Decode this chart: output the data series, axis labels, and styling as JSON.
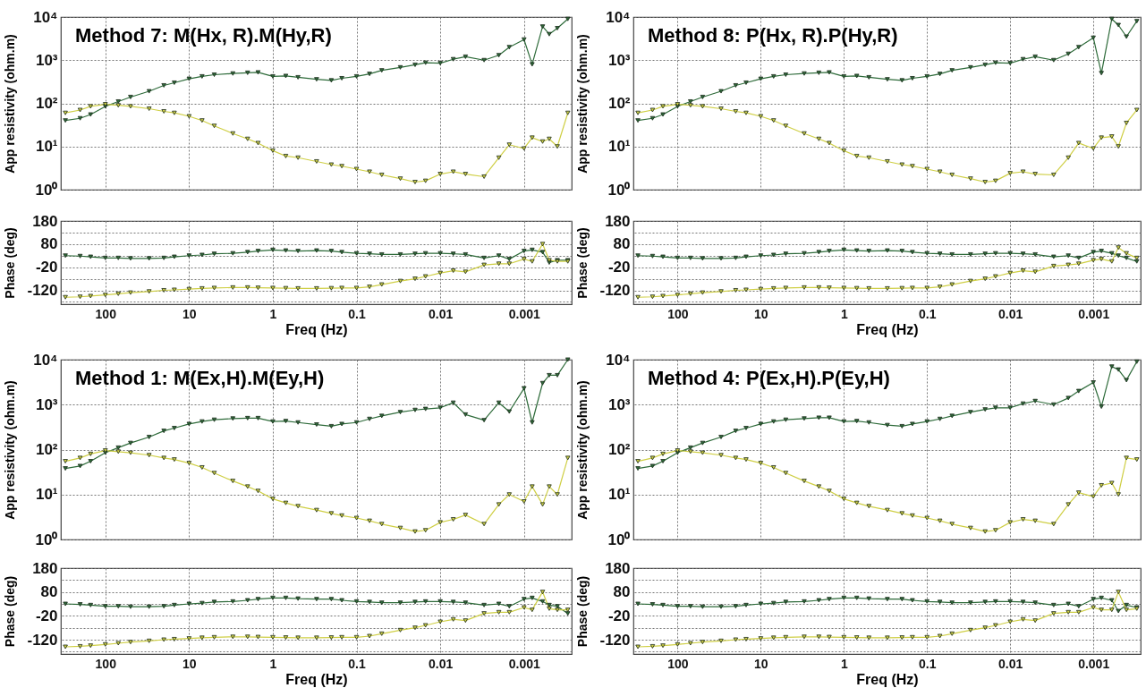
{
  "chart_data": [
    {
      "type": "line",
      "title": "Method 7: M(Hx, R).M(Hy,R)",
      "ylabel": "App resistivity (ohm.m)",
      "log": "xy",
      "grid": true,
      "marker": "triangle",
      "tick_labels": "y",
      "xlim": [
        340,
        0.00027
      ],
      "ylim": [
        1,
        10000
      ],
      "xticks": [
        100,
        10,
        1,
        0.1,
        0.01,
        0.001
      ],
      "yticks": [
        {
          "value": 1,
          "label": "10⁰"
        },
        {
          "value": 10,
          "label": "10¹"
        },
        {
          "value": 100,
          "label": "10²"
        },
        {
          "value": 1000,
          "label": "10³"
        },
        {
          "value": 10000,
          "label": "10⁴"
        }
      ],
      "x": [
        300,
        200,
        150,
        100,
        70,
        50,
        30,
        20,
        15,
        10,
        7,
        5,
        3,
        2,
        1.5,
        1,
        0.7,
        0.5,
        0.3,
        0.2,
        0.15,
        0.1,
        0.07,
        0.05,
        0.03,
        0.02,
        0.015,
        0.01,
        0.007,
        0.005,
        0.003,
        0.002,
        0.0015,
        0.001,
        0.0008,
        0.0006,
        0.0005,
        0.0004,
        0.0003
      ],
      "series": [
        {
          "color": "#2e6b3a",
          "values": [
            40,
            45,
            55,
            85,
            110,
            140,
            190,
            260,
            300,
            370,
            420,
            460,
            490,
            510,
            520,
            420,
            430,
            400,
            360,
            340,
            380,
            420,
            480,
            580,
            680,
            780,
            870,
            850,
            1050,
            1200,
            1000,
            1300,
            2000,
            3000,
            800,
            6000,
            4000,
            5500,
            9000
          ]
        },
        {
          "color": "#cfcf45",
          "values": [
            60,
            70,
            85,
            95,
            90,
            85,
            75,
            65,
            60,
            50,
            40,
            30,
            20,
            15,
            12,
            8,
            6,
            5.5,
            4.5,
            3.8,
            3.5,
            3,
            2.6,
            2.2,
            1.8,
            1.5,
            1.6,
            2.3,
            2.6,
            2.3,
            2,
            5.5,
            11,
            9,
            16,
            13,
            15,
            10,
            60
          ]
        }
      ]
    },
    {
      "type": "line",
      "title": "Method 8: P(Hx, R).P(Hy,R)",
      "ylabel": "App resistivity (ohm.m)",
      "log": "xy",
      "grid": true,
      "marker": "triangle",
      "tick_labels": "y",
      "xlim": [
        340,
        0.00027
      ],
      "ylim": [
        1,
        10000
      ],
      "xticks": [
        100,
        10,
        1,
        0.1,
        0.01,
        0.001
      ],
      "yticks": [
        {
          "value": 1,
          "label": "10⁰"
        },
        {
          "value": 10,
          "label": "10¹"
        },
        {
          "value": 100,
          "label": "10²"
        },
        {
          "value": 1000,
          "label": "10³"
        },
        {
          "value": 10000,
          "label": "10⁴"
        }
      ],
      "x": [
        300,
        200,
        150,
        100,
        70,
        50,
        30,
        20,
        15,
        10,
        7,
        5,
        3,
        2,
        1.5,
        1,
        0.7,
        0.5,
        0.3,
        0.2,
        0.15,
        0.1,
        0.07,
        0.05,
        0.03,
        0.02,
        0.015,
        0.01,
        0.007,
        0.005,
        0.003,
        0.002,
        0.0015,
        0.001,
        0.0008,
        0.0006,
        0.0005,
        0.0004,
        0.0003
      ],
      "series": [
        {
          "color": "#2e6b3a",
          "values": [
            40,
            45,
            55,
            85,
            110,
            140,
            190,
            260,
            300,
            370,
            420,
            460,
            490,
            510,
            520,
            420,
            430,
            400,
            360,
            340,
            380,
            420,
            480,
            580,
            680,
            780,
            870,
            850,
            1050,
            1200,
            1000,
            1400,
            2000,
            3300,
            500,
            9000,
            6500,
            3500,
            8000
          ]
        },
        {
          "color": "#cfcf45",
          "values": [
            60,
            70,
            85,
            95,
            90,
            85,
            75,
            65,
            60,
            50,
            40,
            30,
            20,
            15,
            12,
            8,
            6,
            5.5,
            4.5,
            3.8,
            3.5,
            3,
            2.6,
            2.2,
            1.8,
            1.5,
            1.6,
            2.4,
            2.6,
            2.3,
            2.2,
            5.5,
            12,
            9,
            16,
            17,
            10,
            35,
            70
          ]
        }
      ]
    },
    {
      "type": "line",
      "ylabel": "Phase (deg)",
      "xlabel": "Freq (Hz)",
      "log": "x",
      "grid": true,
      "marker": "triangle",
      "xlim": [
        340,
        0.00027
      ],
      "ylim": [
        -180,
        180
      ],
      "xticks": [
        100,
        10,
        1,
        0.1,
        0.01,
        0.001
      ],
      "yticks": [
        180,
        {
          "value": 130,
          "label": null
        },
        80,
        {
          "value": 30,
          "label": null
        },
        -20,
        {
          "value": -70,
          "label": null
        },
        -120,
        {
          "value": -170,
          "label": null
        }
      ],
      "x": [
        300,
        200,
        150,
        100,
        70,
        50,
        30,
        20,
        15,
        10,
        7,
        5,
        3,
        2,
        1.5,
        1,
        0.7,
        0.5,
        0.3,
        0.2,
        0.15,
        0.1,
        0.07,
        0.05,
        0.03,
        0.02,
        0.015,
        0.01,
        0.007,
        0.005,
        0.003,
        0.002,
        0.0015,
        0.001,
        0.0008,
        0.0006,
        0.0005,
        0.0004,
        0.0003
      ],
      "series": [
        {
          "color": "#2e6b3a",
          "values": [
            30,
            28,
            25,
            20,
            20,
            18,
            18,
            20,
            25,
            30,
            33,
            38,
            40,
            45,
            50,
            55,
            52,
            50,
            52,
            50,
            45,
            40,
            38,
            35,
            35,
            38,
            40,
            40,
            38,
            35,
            20,
            30,
            15,
            50,
            55,
            45,
            0,
            10,
            10
          ]
        },
        {
          "color": "#cfcf45",
          "values": [
            -150,
            -148,
            -145,
            -140,
            -135,
            -130,
            -125,
            -120,
            -118,
            -115,
            -112,
            -110,
            -108,
            -108,
            -109,
            -110,
            -111,
            -112,
            -112,
            -111,
            -110,
            -110,
            -105,
            -95,
            -80,
            -70,
            -60,
            -45,
            -35,
            -40,
            -10,
            -5,
            -5,
            15,
            5,
            80,
            10,
            5,
            5
          ]
        }
      ]
    },
    {
      "type": "line",
      "ylabel": "Phase (deg)",
      "xlabel": "Freq (Hz)",
      "log": "x",
      "grid": true,
      "marker": "triangle",
      "xlim": [
        340,
        0.00027
      ],
      "ylim": [
        -180,
        180
      ],
      "xticks": [
        100,
        10,
        1,
        0.1,
        0.01,
        0.001
      ],
      "yticks": [
        180,
        {
          "value": 130,
          "label": null
        },
        80,
        {
          "value": 30,
          "label": null
        },
        -20,
        {
          "value": -70,
          "label": null
        },
        -120,
        {
          "value": -170,
          "label": null
        }
      ],
      "x": [
        300,
        200,
        150,
        100,
        70,
        50,
        30,
        20,
        15,
        10,
        7,
        5,
        3,
        2,
        1.5,
        1,
        0.7,
        0.5,
        0.3,
        0.2,
        0.15,
        0.1,
        0.07,
        0.05,
        0.03,
        0.02,
        0.015,
        0.01,
        0.007,
        0.005,
        0.003,
        0.002,
        0.0015,
        0.001,
        0.0008,
        0.0006,
        0.0005,
        0.0004,
        0.0003
      ],
      "series": [
        {
          "color": "#2e6b3a",
          "values": [
            30,
            28,
            25,
            20,
            20,
            18,
            18,
            20,
            25,
            30,
            33,
            38,
            40,
            45,
            50,
            55,
            52,
            50,
            52,
            50,
            45,
            40,
            38,
            35,
            35,
            38,
            40,
            40,
            38,
            35,
            25,
            30,
            20,
            45,
            50,
            40,
            30,
            20,
            5
          ]
        },
        {
          "color": "#cfcf45",
          "values": [
            -150,
            -148,
            -145,
            -140,
            -135,
            -130,
            -125,
            -120,
            -118,
            -115,
            -112,
            -110,
            -108,
            -108,
            -109,
            -110,
            -111,
            -112,
            -112,
            -111,
            -110,
            -110,
            -105,
            -95,
            -80,
            -70,
            -60,
            -45,
            -35,
            -40,
            -15,
            -10,
            -5,
            10,
            15,
            5,
            65,
            40,
            20
          ]
        }
      ]
    },
    {
      "type": "line",
      "title": "Method 1: M(Ex,H).M(Ey,H)",
      "ylabel": "App resistivity (ohm.m)",
      "log": "xy",
      "grid": true,
      "marker": "triangle",
      "tick_labels": "y",
      "xlim": [
        340,
        0.00027
      ],
      "ylim": [
        1,
        10000
      ],
      "xticks": [
        100,
        10,
        1,
        0.1,
        0.01,
        0.001
      ],
      "yticks": [
        {
          "value": 1,
          "label": "10⁰"
        },
        {
          "value": 10,
          "label": "10¹"
        },
        {
          "value": 100,
          "label": "10²"
        },
        {
          "value": 1000,
          "label": "10³"
        },
        {
          "value": 10000,
          "label": "10⁴"
        }
      ],
      "x": [
        300,
        200,
        150,
        100,
        70,
        50,
        30,
        20,
        15,
        10,
        7,
        5,
        3,
        2,
        1.5,
        1,
        0.7,
        0.5,
        0.3,
        0.2,
        0.15,
        0.1,
        0.07,
        0.05,
        0.03,
        0.02,
        0.015,
        0.01,
        0.007,
        0.005,
        0.003,
        0.002,
        0.0015,
        0.001,
        0.0008,
        0.0006,
        0.0005,
        0.0004,
        0.0003
      ],
      "series": [
        {
          "color": "#2e6b3a",
          "values": [
            38,
            43,
            55,
            85,
            110,
            140,
            190,
            260,
            300,
            370,
            420,
            460,
            490,
            500,
            500,
            420,
            430,
            400,
            360,
            330,
            370,
            400,
            480,
            560,
            680,
            760,
            800,
            850,
            1100,
            600,
            450,
            1100,
            700,
            2300,
            400,
            3000,
            4500,
            4500,
            10000
          ]
        },
        {
          "color": "#cfcf45",
          "values": [
            55,
            65,
            80,
            95,
            90,
            85,
            75,
            65,
            60,
            50,
            40,
            30,
            20,
            15,
            12,
            8,
            6.5,
            5.5,
            4.5,
            3.8,
            3.4,
            3,
            2.6,
            2.2,
            1.8,
            1.5,
            1.6,
            2.4,
            2.8,
            3.5,
            2.2,
            6,
            10,
            7,
            15,
            6,
            15,
            10,
            65
          ]
        }
      ]
    },
    {
      "type": "line",
      "title": "Method 4: P(Ex,H).P(Ey,H)",
      "ylabel": "App resistivity (ohm.m)",
      "log": "xy",
      "grid": true,
      "marker": "triangle",
      "tick_labels": "y",
      "xlim": [
        340,
        0.00027
      ],
      "ylim": [
        1,
        10000
      ],
      "xticks": [
        100,
        10,
        1,
        0.1,
        0.01,
        0.001
      ],
      "yticks": [
        {
          "value": 1,
          "label": "10⁰"
        },
        {
          "value": 10,
          "label": "10¹"
        },
        {
          "value": 100,
          "label": "10²"
        },
        {
          "value": 1000,
          "label": "10³"
        },
        {
          "value": 10000,
          "label": "10⁴"
        }
      ],
      "x": [
        300,
        200,
        150,
        100,
        70,
        50,
        30,
        20,
        15,
        10,
        7,
        5,
        3,
        2,
        1.5,
        1,
        0.7,
        0.5,
        0.3,
        0.2,
        0.15,
        0.1,
        0.07,
        0.05,
        0.03,
        0.02,
        0.015,
        0.01,
        0.007,
        0.005,
        0.003,
        0.002,
        0.0015,
        0.001,
        0.0008,
        0.0006,
        0.0005,
        0.0004,
        0.0003
      ],
      "series": [
        {
          "color": "#2e6b3a",
          "values": [
            38,
            43,
            55,
            85,
            110,
            140,
            190,
            260,
            300,
            370,
            420,
            460,
            490,
            510,
            510,
            420,
            430,
            400,
            350,
            330,
            370,
            420,
            480,
            560,
            680,
            780,
            850,
            850,
            1050,
            1200,
            1000,
            1400,
            2000,
            3100,
            900,
            7000,
            6000,
            3500,
            9000
          ]
        },
        {
          "color": "#cfcf45",
          "values": [
            55,
            65,
            80,
            95,
            90,
            85,
            75,
            65,
            60,
            50,
            40,
            30,
            20,
            15,
            12,
            8,
            6.5,
            5.5,
            4.5,
            3.8,
            3.4,
            3,
            2.6,
            2.2,
            1.8,
            1.5,
            1.6,
            2.4,
            2.8,
            2.6,
            2.2,
            6,
            11,
            9,
            16,
            18,
            10,
            65,
            60
          ]
        }
      ]
    },
    {
      "type": "line",
      "ylabel": "Phase (deg)",
      "xlabel": "Freq (Hz)",
      "log": "x",
      "grid": true,
      "marker": "triangle",
      "xlim": [
        340,
        0.00027
      ],
      "ylim": [
        -180,
        180
      ],
      "xticks": [
        100,
        10,
        1,
        0.1,
        0.01,
        0.001
      ],
      "yticks": [
        180,
        {
          "value": 130,
          "label": null
        },
        80,
        {
          "value": 30,
          "label": null
        },
        -20,
        {
          "value": -70,
          "label": null
        },
        -120,
        {
          "value": -170,
          "label": null
        }
      ],
      "x": [
        300,
        200,
        150,
        100,
        70,
        50,
        30,
        20,
        15,
        10,
        7,
        5,
        3,
        2,
        1.5,
        1,
        0.7,
        0.5,
        0.3,
        0.2,
        0.15,
        0.1,
        0.07,
        0.05,
        0.03,
        0.02,
        0.015,
        0.01,
        0.007,
        0.005,
        0.003,
        0.002,
        0.0015,
        0.001,
        0.0008,
        0.0006,
        0.0005,
        0.0004,
        0.0003
      ],
      "series": [
        {
          "color": "#2e6b3a",
          "values": [
            30,
            28,
            25,
            20,
            20,
            18,
            18,
            20,
            25,
            30,
            33,
            38,
            40,
            45,
            50,
            55,
            55,
            52,
            50,
            50,
            45,
            40,
            38,
            35,
            35,
            38,
            40,
            40,
            38,
            35,
            25,
            30,
            20,
            50,
            55,
            40,
            25,
            20,
            -10
          ]
        },
        {
          "color": "#cfcf45",
          "values": [
            -150,
            -148,
            -145,
            -140,
            -135,
            -130,
            -125,
            -120,
            -118,
            -115,
            -112,
            -110,
            -108,
            -108,
            -109,
            -110,
            -111,
            -112,
            -112,
            -111,
            -110,
            -110,
            -105,
            -95,
            -80,
            -70,
            -60,
            -45,
            -35,
            -40,
            -10,
            -5,
            -5,
            15,
            5,
            80,
            10,
            5,
            5
          ]
        }
      ]
    },
    {
      "type": "line",
      "ylabel": "Phase (deg)",
      "xlabel": "Freq (Hz)",
      "log": "x",
      "grid": true,
      "marker": "triangle",
      "xlim": [
        340,
        0.00027
      ],
      "ylim": [
        -180,
        180
      ],
      "xticks": [
        100,
        10,
        1,
        0.1,
        0.01,
        0.001
      ],
      "yticks": [
        180,
        {
          "value": 130,
          "label": null
        },
        80,
        {
          "value": 30,
          "label": null
        },
        -20,
        {
          "value": -70,
          "label": null
        },
        -120,
        {
          "value": -170,
          "label": null
        }
      ],
      "x": [
        300,
        200,
        150,
        100,
        70,
        50,
        30,
        20,
        15,
        10,
        7,
        5,
        3,
        2,
        1.5,
        1,
        0.7,
        0.5,
        0.3,
        0.2,
        0.15,
        0.1,
        0.07,
        0.05,
        0.03,
        0.02,
        0.015,
        0.01,
        0.007,
        0.005,
        0.003,
        0.002,
        0.0015,
        0.001,
        0.0008,
        0.0006,
        0.0005,
        0.0004,
        0.0003
      ],
      "series": [
        {
          "color": "#2e6b3a",
          "values": [
            30,
            28,
            25,
            20,
            20,
            18,
            18,
            20,
            25,
            30,
            33,
            38,
            40,
            45,
            50,
            55,
            55,
            52,
            50,
            50,
            45,
            40,
            38,
            35,
            35,
            38,
            40,
            40,
            38,
            35,
            25,
            30,
            20,
            50,
            55,
            45,
            0,
            25,
            15
          ]
        },
        {
          "color": "#cfcf45",
          "values": [
            -150,
            -148,
            -145,
            -140,
            -135,
            -130,
            -125,
            -120,
            -118,
            -115,
            -112,
            -110,
            -108,
            -108,
            -109,
            -110,
            -111,
            -112,
            -112,
            -111,
            -110,
            -110,
            -105,
            -95,
            -80,
            -70,
            -60,
            -45,
            -35,
            -40,
            -10,
            -5,
            -5,
            15,
            5,
            5,
            80,
            5,
            10
          ]
        }
      ]
    }
  ]
}
